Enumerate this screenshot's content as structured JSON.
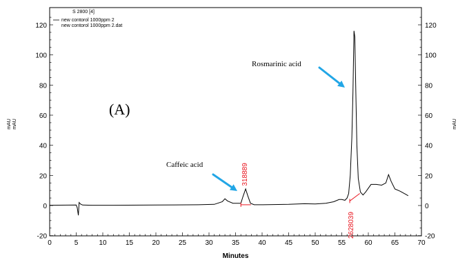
{
  "chart_data": {
    "type": "line",
    "xlabel": "Minutes",
    "ylabel_left": "mAU",
    "ylabel_right": "mAU",
    "xlim": [
      0,
      70
    ],
    "ylim": [
      -20,
      130
    ],
    "x_ticks": [
      "0",
      "5",
      "10",
      "15",
      "20",
      "25",
      "30",
      "35",
      "40",
      "45",
      "50",
      "55",
      "60",
      "65",
      "70"
    ],
    "y_ticks": [
      "-20",
      "0",
      "20",
      "40",
      "60",
      "80",
      "100",
      "120"
    ],
    "legend": {
      "title": "S 2800 [4]",
      "entries": [
        "new contorol 1000ppm 2",
        "new contorol 1000ppm 2.dat"
      ]
    },
    "panel_label": "(A)",
    "series": [
      {
        "color": "#000000",
        "x": [
          0,
          5.0,
          5.2,
          5.4,
          5.55,
          5.8,
          6.2,
          8,
          12,
          20,
          28,
          31,
          32.5,
          33.0,
          33.5,
          34.5,
          36.0,
          36.4,
          36.9,
          37.3,
          37.8,
          38.5,
          40,
          45,
          48,
          50,
          52,
          53.5,
          54.5,
          55.0,
          55.6,
          56.0,
          56.3,
          56.6,
          56.9,
          57.1,
          57.3,
          57.45,
          57.65,
          57.85,
          58.1,
          58.5,
          59.0,
          59.5,
          60.5,
          61.5,
          62.5,
          63.3,
          63.8,
          64.3,
          65.0,
          66.0,
          67.0,
          67.5
        ],
        "y": [
          0.2,
          0.3,
          -1.5,
          -6.5,
          2.0,
          1.0,
          0.3,
          0.2,
          0.2,
          0.3,
          0.5,
          0.8,
          2.5,
          4.5,
          3.0,
          1.5,
          1.5,
          6.0,
          11.0,
          6.5,
          1.5,
          0.5,
          0.5,
          0.8,
          1.2,
          1.0,
          1.5,
          2.5,
          4.0,
          4.0,
          3.5,
          5.0,
          8.0,
          20.0,
          45.0,
          75.0,
          116.0,
          112.0,
          75.0,
          40.0,
          18.0,
          9.0,
          7.0,
          9.0,
          14.0,
          14.0,
          13.5,
          15.0,
          20.5,
          16.0,
          11.0,
          9.5,
          7.5,
          6.5
        ]
      }
    ],
    "annotations": [
      {
        "text": "Caffeic acid",
        "x": 36.9,
        "y": 11.0
      },
      {
        "text": "Rosmarinic acid",
        "x": 57.3,
        "y": 116.0
      }
    ],
    "peak_areas": [
      {
        "label": "318889",
        "x": 36.9
      },
      {
        "label": "2628039",
        "x": 57.3
      }
    ]
  }
}
